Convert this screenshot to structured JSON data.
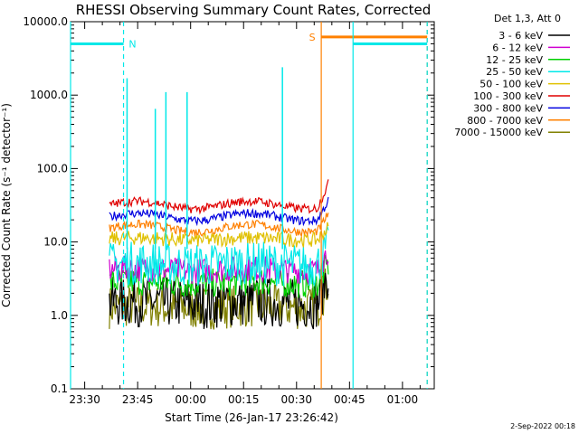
{
  "chart_data": {
    "type": "line",
    "title": "RHESSI Observing Summary Count Rates, Corrected",
    "xlabel": "Start Time (26-Jan-17 23:26:42)",
    "ylabel": "Corrected Count Rate (s⁻¹ detector⁻¹)",
    "yscale": "log",
    "ylim": [
      0.1,
      10000.0
    ],
    "xlim": [
      "23:26",
      "01:09"
    ],
    "x_tick_labels": [
      "23:30",
      "23:45",
      "00:00",
      "00:15",
      "00:30",
      "00:45",
      "01:00"
    ],
    "y_tick_labels": [
      "0.1",
      "1.0",
      "10.0",
      "100.0",
      "1000.0",
      "10000.0"
    ],
    "data_span": [
      "23:37",
      "00:39"
    ],
    "legend_header": "Det 1,3, Att 0",
    "legend_position": "right",
    "series": [
      {
        "name": "3 - 6 keV",
        "color": "#000000",
        "level": 1.5,
        "noise": 0.35,
        "end": 4.0
      },
      {
        "name": "6 - 12 keV",
        "color": "#d000d0",
        "level": 4.2,
        "noise": 0.18,
        "end": 8.0
      },
      {
        "name": "12 - 25 keV",
        "color": "#00d000",
        "level": 2.8,
        "noise": 0.2,
        "end": 5.0
      },
      {
        "name": "25 - 50 keV",
        "color": "#00e8e8",
        "level": 5.0,
        "noise": 0.3,
        "end": 9.0
      },
      {
        "name": "50 - 100 keV",
        "color": "#e0c000",
        "level": 11.0,
        "noise": 0.1,
        "end": 16.0
      },
      {
        "name": "100 - 300 keV",
        "color": "#e00000",
        "level": 32.0,
        "noise": 0.06,
        "end": 65.0
      },
      {
        "name": "300 - 800 keV",
        "color": "#0000e0",
        "level": 22.0,
        "noise": 0.06,
        "end": 38.0
      },
      {
        "name": "800 - 7000 keV",
        "color": "#ff8000",
        "level": 15.5,
        "noise": 0.06,
        "end": 25.0
      },
      {
        "name": "7000 - 15000 keV",
        "color": "#808000",
        "level": 1.3,
        "noise": 0.3,
        "end": 3.0
      }
    ],
    "spikes": [
      {
        "time": "23:42",
        "value": 1700,
        "color": "#00e8e8"
      },
      {
        "time": "23:50",
        "value": 650,
        "color": "#00e8e8"
      },
      {
        "time": "23:53",
        "value": 1100,
        "color": "#00e8e8"
      },
      {
        "time": "23:59",
        "value": 1100,
        "color": "#00e8e8"
      },
      {
        "time": "00:26",
        "value": 2400,
        "color": "#00e8e8"
      }
    ],
    "flag_intervals": [
      {
        "label": "N",
        "color": "#00e8e8",
        "from": "23:26",
        "to": "23:41",
        "level": 5000
      },
      {
        "label": "S",
        "color": "#ff8000",
        "from": "00:37",
        "to": "01:07",
        "level": 6200
      },
      {
        "label": "",
        "color": "#00e8e8",
        "from": "00:46",
        "to": "01:07",
        "level": 5000
      }
    ],
    "footer_date": "2-Sep-2022 00:18"
  }
}
